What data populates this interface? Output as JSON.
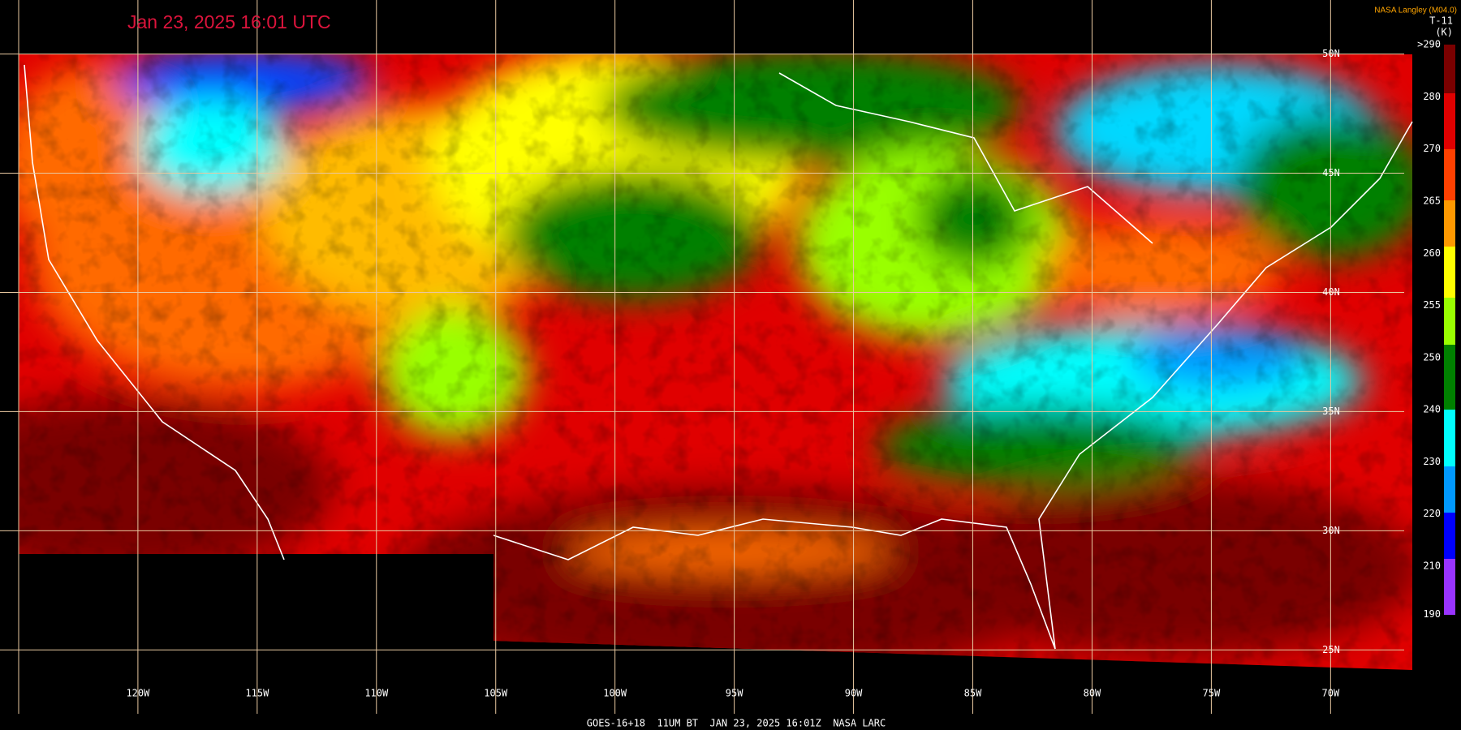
{
  "header": {
    "timestamp": "Jan 23, 2025 16:01 UTC",
    "credit": "NASA Langley (M04.0)"
  },
  "colorbar": {
    "title": "T-11",
    "unit": "(K)",
    "labels": [
      ">290",
      "280",
      "270",
      "265",
      "260",
      "255",
      "250",
      "240",
      "230",
      "220",
      "210",
      "190"
    ]
  },
  "map": {
    "lon_labels": [
      "120W",
      "115W",
      "110W",
      "105W",
      "100W",
      "95W",
      "90W",
      "85W",
      "80W",
      "75W",
      "70W"
    ],
    "lat_labels": [
      "50N",
      "45N",
      "40N",
      "35N",
      "30N",
      "25N"
    ]
  },
  "footer": {
    "caption": "GOES-16+18  11UM BT  JAN 23, 2025 16:01Z  NASA LARC"
  }
}
